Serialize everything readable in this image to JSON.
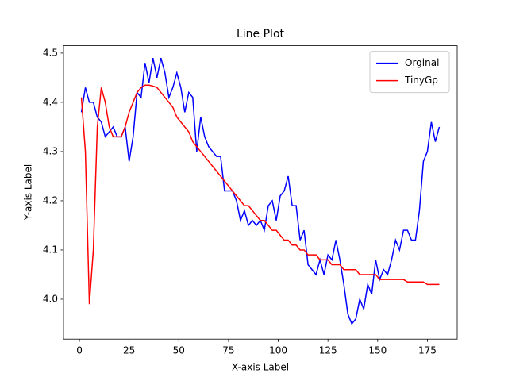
{
  "chart_data": {
    "type": "line",
    "title": "Line Plot",
    "xlabel": "X-axis Label",
    "ylabel": "Y-axis Label",
    "x": [
      1,
      3,
      5,
      7,
      9,
      11,
      13,
      15,
      17,
      19,
      21,
      23,
      25,
      27,
      29,
      31,
      33,
      35,
      37,
      39,
      41,
      43,
      45,
      47,
      49,
      51,
      53,
      55,
      57,
      59,
      61,
      63,
      65,
      67,
      69,
      71,
      73,
      75,
      77,
      79,
      81,
      83,
      85,
      87,
      89,
      91,
      93,
      95,
      97,
      99,
      101,
      103,
      105,
      107,
      109,
      111,
      113,
      115,
      117,
      119,
      121,
      123,
      125,
      127,
      129,
      131,
      133,
      135,
      137,
      139,
      141,
      143,
      145,
      147,
      149,
      151,
      153,
      155,
      157,
      159,
      161,
      163,
      165,
      167,
      169,
      171,
      173,
      175,
      177,
      179,
      181
    ],
    "series": [
      {
        "name": "Orginal",
        "color": "#0000ff",
        "values": [
          4.38,
          4.43,
          4.4,
          4.4,
          4.37,
          4.36,
          4.33,
          4.34,
          4.35,
          4.33,
          4.33,
          4.35,
          4.28,
          4.33,
          4.42,
          4.41,
          4.48,
          4.44,
          4.49,
          4.45,
          4.49,
          4.46,
          4.41,
          4.43,
          4.46,
          4.43,
          4.38,
          4.42,
          4.41,
          4.3,
          4.37,
          4.33,
          4.31,
          4.3,
          4.29,
          4.29,
          4.22,
          4.22,
          4.22,
          4.2,
          4.16,
          4.18,
          4.15,
          4.16,
          4.15,
          4.16,
          4.14,
          4.19,
          4.2,
          4.16,
          4.21,
          4.22,
          4.25,
          4.19,
          4.19,
          4.12,
          4.14,
          4.07,
          4.06,
          4.05,
          4.08,
          4.05,
          4.09,
          4.08,
          4.12,
          4.08,
          4.03,
          3.97,
          3.95,
          3.96,
          4.0,
          3.98,
          4.03,
          4.01,
          4.08,
          4.04,
          4.06,
          4.05,
          4.08,
          4.12,
          4.1,
          4.14,
          4.14,
          4.12,
          4.12,
          4.18,
          4.28,
          4.3,
          4.36,
          4.32,
          4.35
        ]
      },
      {
        "name": "TinyGp",
        "color": "#ff0000",
        "values": [
          4.41,
          4.3,
          3.99,
          4.1,
          4.35,
          4.43,
          4.4,
          4.35,
          4.33,
          4.33,
          4.33,
          4.35,
          4.38,
          4.4,
          4.42,
          4.43,
          4.435,
          4.435,
          4.433,
          4.43,
          4.42,
          4.41,
          4.4,
          4.39,
          4.37,
          4.36,
          4.35,
          4.34,
          4.32,
          4.31,
          4.3,
          4.29,
          4.28,
          4.27,
          4.26,
          4.25,
          4.24,
          4.23,
          4.22,
          4.21,
          4.2,
          4.19,
          4.19,
          4.18,
          4.17,
          4.16,
          4.16,
          4.15,
          4.14,
          4.14,
          4.13,
          4.12,
          4.12,
          4.11,
          4.11,
          4.1,
          4.1,
          4.09,
          4.09,
          4.09,
          4.08,
          4.08,
          4.08,
          4.07,
          4.07,
          4.07,
          4.06,
          4.06,
          4.06,
          4.06,
          4.05,
          4.05,
          4.05,
          4.05,
          4.05,
          4.04,
          4.04,
          4.04,
          4.04,
          4.04,
          4.04,
          4.04,
          4.035,
          4.035,
          4.035,
          4.035,
          4.035,
          4.03,
          4.03,
          4.03,
          4.03
        ]
      }
    ],
    "xlim": [
      -8,
      190
    ],
    "ylim": [
      3.919,
      4.515
    ],
    "xticks": [
      0,
      25,
      50,
      75,
      100,
      125,
      150,
      175
    ],
    "yticks": [
      {
        "value": 4,
        "label": "4.0"
      },
      4.1,
      4.2,
      4.3,
      4.4,
      4.5
    ],
    "legend": "upper right"
  }
}
